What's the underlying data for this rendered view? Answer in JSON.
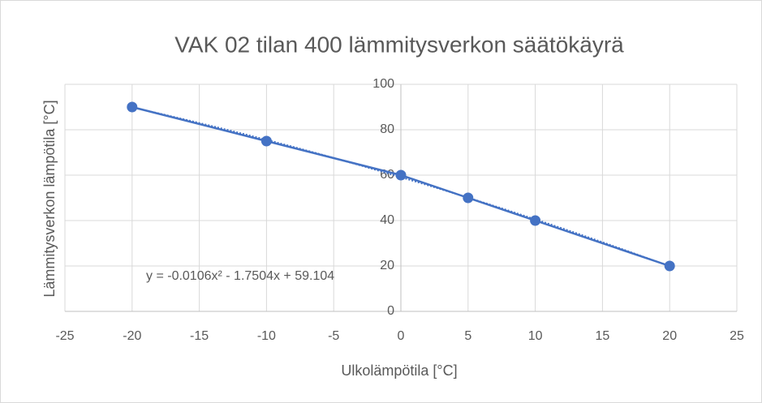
{
  "chart_data": {
    "type": "scatter",
    "title": "VAK 02 tilan 400 lämmitysverkon säätökäyrä",
    "x_label": "Ulkolämpötila [°C]",
    "y_label": "Lämmitysverkon lämpötila [°C]",
    "x": [
      -20,
      -10,
      0,
      5,
      10,
      20
    ],
    "series": [
      {
        "name": "Lämmitysverkon lämpötila",
        "color": "#4472c4",
        "values": [
          90,
          75,
          60,
          50,
          40,
          20
        ]
      }
    ],
    "trendline": {
      "label": "y = -0.0106x² - 1.7504x + 59.104",
      "coefficients": [
        -0.0106,
        -1.7504,
        59.104
      ]
    },
    "xlim": [
      -25,
      25
    ],
    "xticks": [
      -25,
      -20,
      -15,
      -10,
      -5,
      0,
      5,
      10,
      15,
      20,
      25
    ],
    "ylim": [
      0,
      100
    ],
    "yticks": [
      0,
      20,
      40,
      60,
      80,
      100
    ],
    "grid": true
  }
}
